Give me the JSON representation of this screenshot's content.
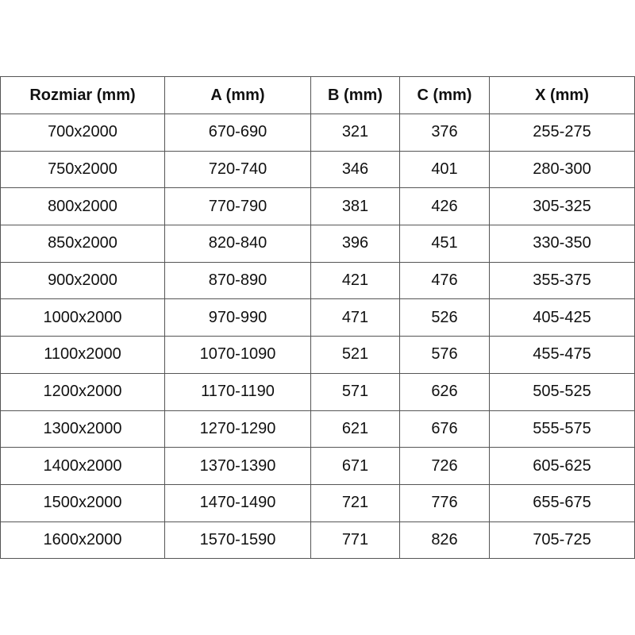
{
  "table": {
    "headers": [
      "Rozmiar (mm)",
      "A (mm)",
      "B (mm)",
      "C (mm)",
      "X (mm)"
    ],
    "rows": [
      [
        "700x2000",
        "670-690",
        "321",
        "376",
        "255-275"
      ],
      [
        "750x2000",
        "720-740",
        "346",
        "401",
        "280-300"
      ],
      [
        "800x2000",
        "770-790",
        "381",
        "426",
        "305-325"
      ],
      [
        "850x2000",
        "820-840",
        "396",
        "451",
        "330-350"
      ],
      [
        "900x2000",
        "870-890",
        "421",
        "476",
        "355-375"
      ],
      [
        "1000x2000",
        "970-990",
        "471",
        "526",
        "405-425"
      ],
      [
        "1100x2000",
        "1070-1090",
        "521",
        "576",
        "455-475"
      ],
      [
        "1200x2000",
        "1170-1190",
        "571",
        "626",
        "505-525"
      ],
      [
        "1300x2000",
        "1270-1290",
        "621",
        "676",
        "555-575"
      ],
      [
        "1400x2000",
        "1370-1390",
        "671",
        "726",
        "605-625"
      ],
      [
        "1500x2000",
        "1470-1490",
        "721",
        "776",
        "655-675"
      ],
      [
        "1600x2000",
        "1570-1590",
        "771",
        "826",
        "705-725"
      ]
    ]
  }
}
